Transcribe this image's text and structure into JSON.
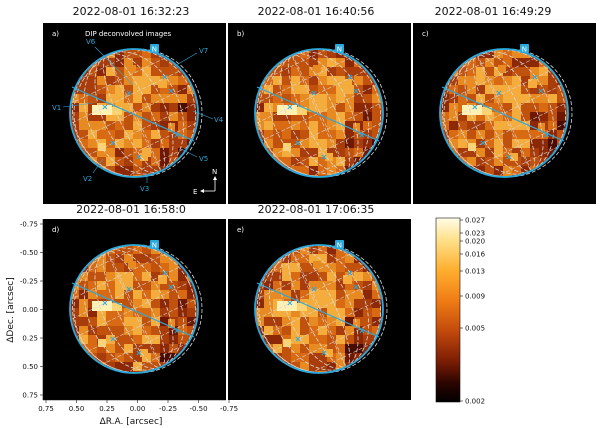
{
  "panels": [
    {
      "letter": "a)",
      "title": "2022-08-01 16:32:23",
      "note": "DIP deconvolved images"
    },
    {
      "letter": "b)",
      "title": "2022-08-01 16:40:56"
    },
    {
      "letter": "c)",
      "title": "2022-08-01 16:49:29"
    },
    {
      "letter": "d)",
      "title": "2022-08-01 16:58:0"
    },
    {
      "letter": "e)",
      "title": "2022-08-01 17:06:35"
    }
  ],
  "north_marker": "N",
  "compass": {
    "north": "N",
    "east": "E"
  },
  "volcano_labels": [
    "V1",
    "V2",
    "V3",
    "V4",
    "V5",
    "V6",
    "V7"
  ],
  "axes": {
    "xlabel": "ΔR.A. [arcsec]",
    "ylabel": "ΔDec. [arcsec]",
    "xticks": [
      "0.75",
      "0.50",
      "0.25",
      "0.00",
      "-0.25",
      "-0.50",
      "-0.75"
    ],
    "yticks": [
      "-0.75",
      "-0.50",
      "-0.25",
      "0.00",
      "0.25",
      "0.50",
      "0.75"
    ]
  },
  "colorbar": {
    "ticks": [
      "0.027",
      "0.023",
      "0.020",
      "0.016",
      "0.013",
      "0.009",
      "0.005",
      "0.002"
    ],
    "colors": [
      "#fffde8",
      "#ffe08a",
      "#ffb030",
      "#f07c14",
      "#c0480c",
      "#7a1d04",
      "#2a0400",
      "#000000"
    ]
  },
  "colors": {
    "limb_circle": "#2aa9dc",
    "grid": "#d8d8d8",
    "background": "#000000"
  }
}
